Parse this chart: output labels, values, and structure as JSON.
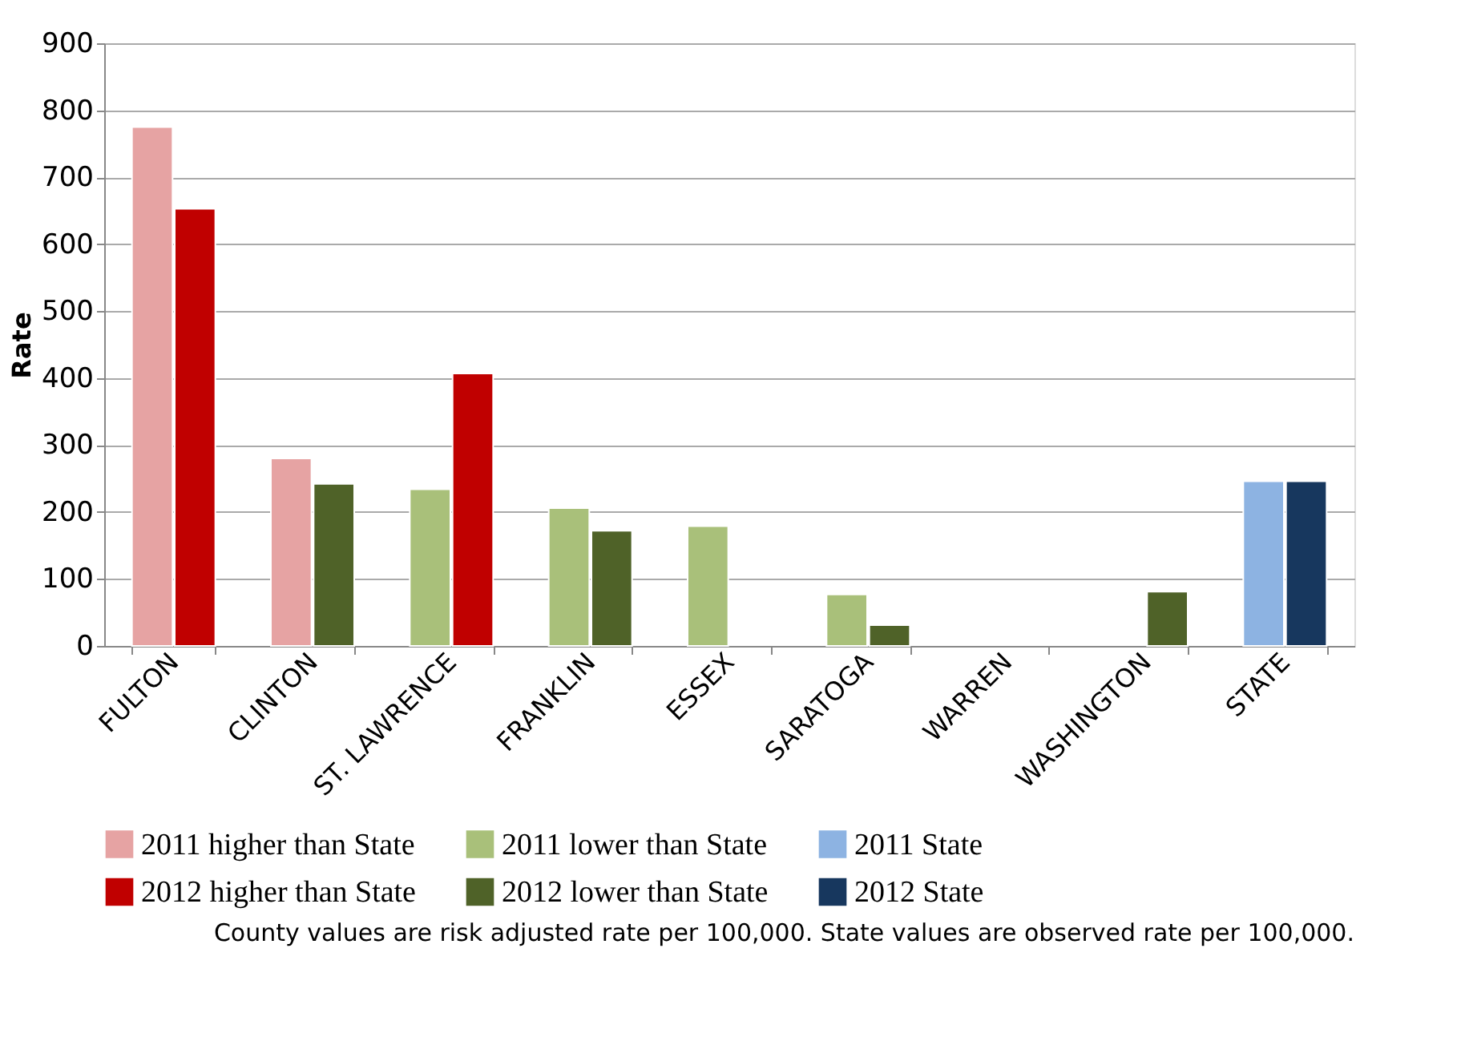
{
  "chart_data": {
    "type": "bar",
    "ylabel": "Rate",
    "categories": [
      "FULTON",
      "CLINTON",
      "ST. LAWRENCE",
      "FRANKLIN",
      "ESSEX",
      "SARATOGA",
      "WARREN",
      "WASHINGTON",
      "STATE"
    ],
    "series": [
      {
        "name": "2011 higher than State",
        "color": "#e6a3a3",
        "values": [
          775,
          280,
          null,
          null,
          null,
          null,
          null,
          null,
          null
        ]
      },
      {
        "name": "2011 lower than State",
        "color": "#a9c07a",
        "values": [
          null,
          null,
          234,
          206,
          179,
          77,
          null,
          null,
          null
        ]
      },
      {
        "name": "2011 State",
        "color": "#8db3e2",
        "values": [
          null,
          null,
          null,
          null,
          null,
          null,
          null,
          null,
          246
        ]
      },
      {
        "name": "2012 higher than State",
        "color": "#c00000",
        "values": [
          653,
          null,
          407,
          null,
          null,
          null,
          null,
          null,
          null
        ]
      },
      {
        "name": "2012 lower than State",
        "color": "#4f6228",
        "values": [
          null,
          242,
          null,
          172,
          null,
          31,
          null,
          81,
          null
        ]
      },
      {
        "name": "2012 State",
        "color": "#17375e",
        "values": [
          null,
          null,
          null,
          null,
          null,
          null,
          null,
          null,
          246
        ]
      }
    ],
    "ylim": [
      0,
      900
    ],
    "yticks": [
      0,
      100,
      200,
      300,
      400,
      500,
      600,
      700,
      800,
      900
    ],
    "grid": "y",
    "legend": "bottom",
    "annotations": [
      "County values are risk adjusted rate per 100,000. State values are observed rate per 100,000."
    ]
  }
}
